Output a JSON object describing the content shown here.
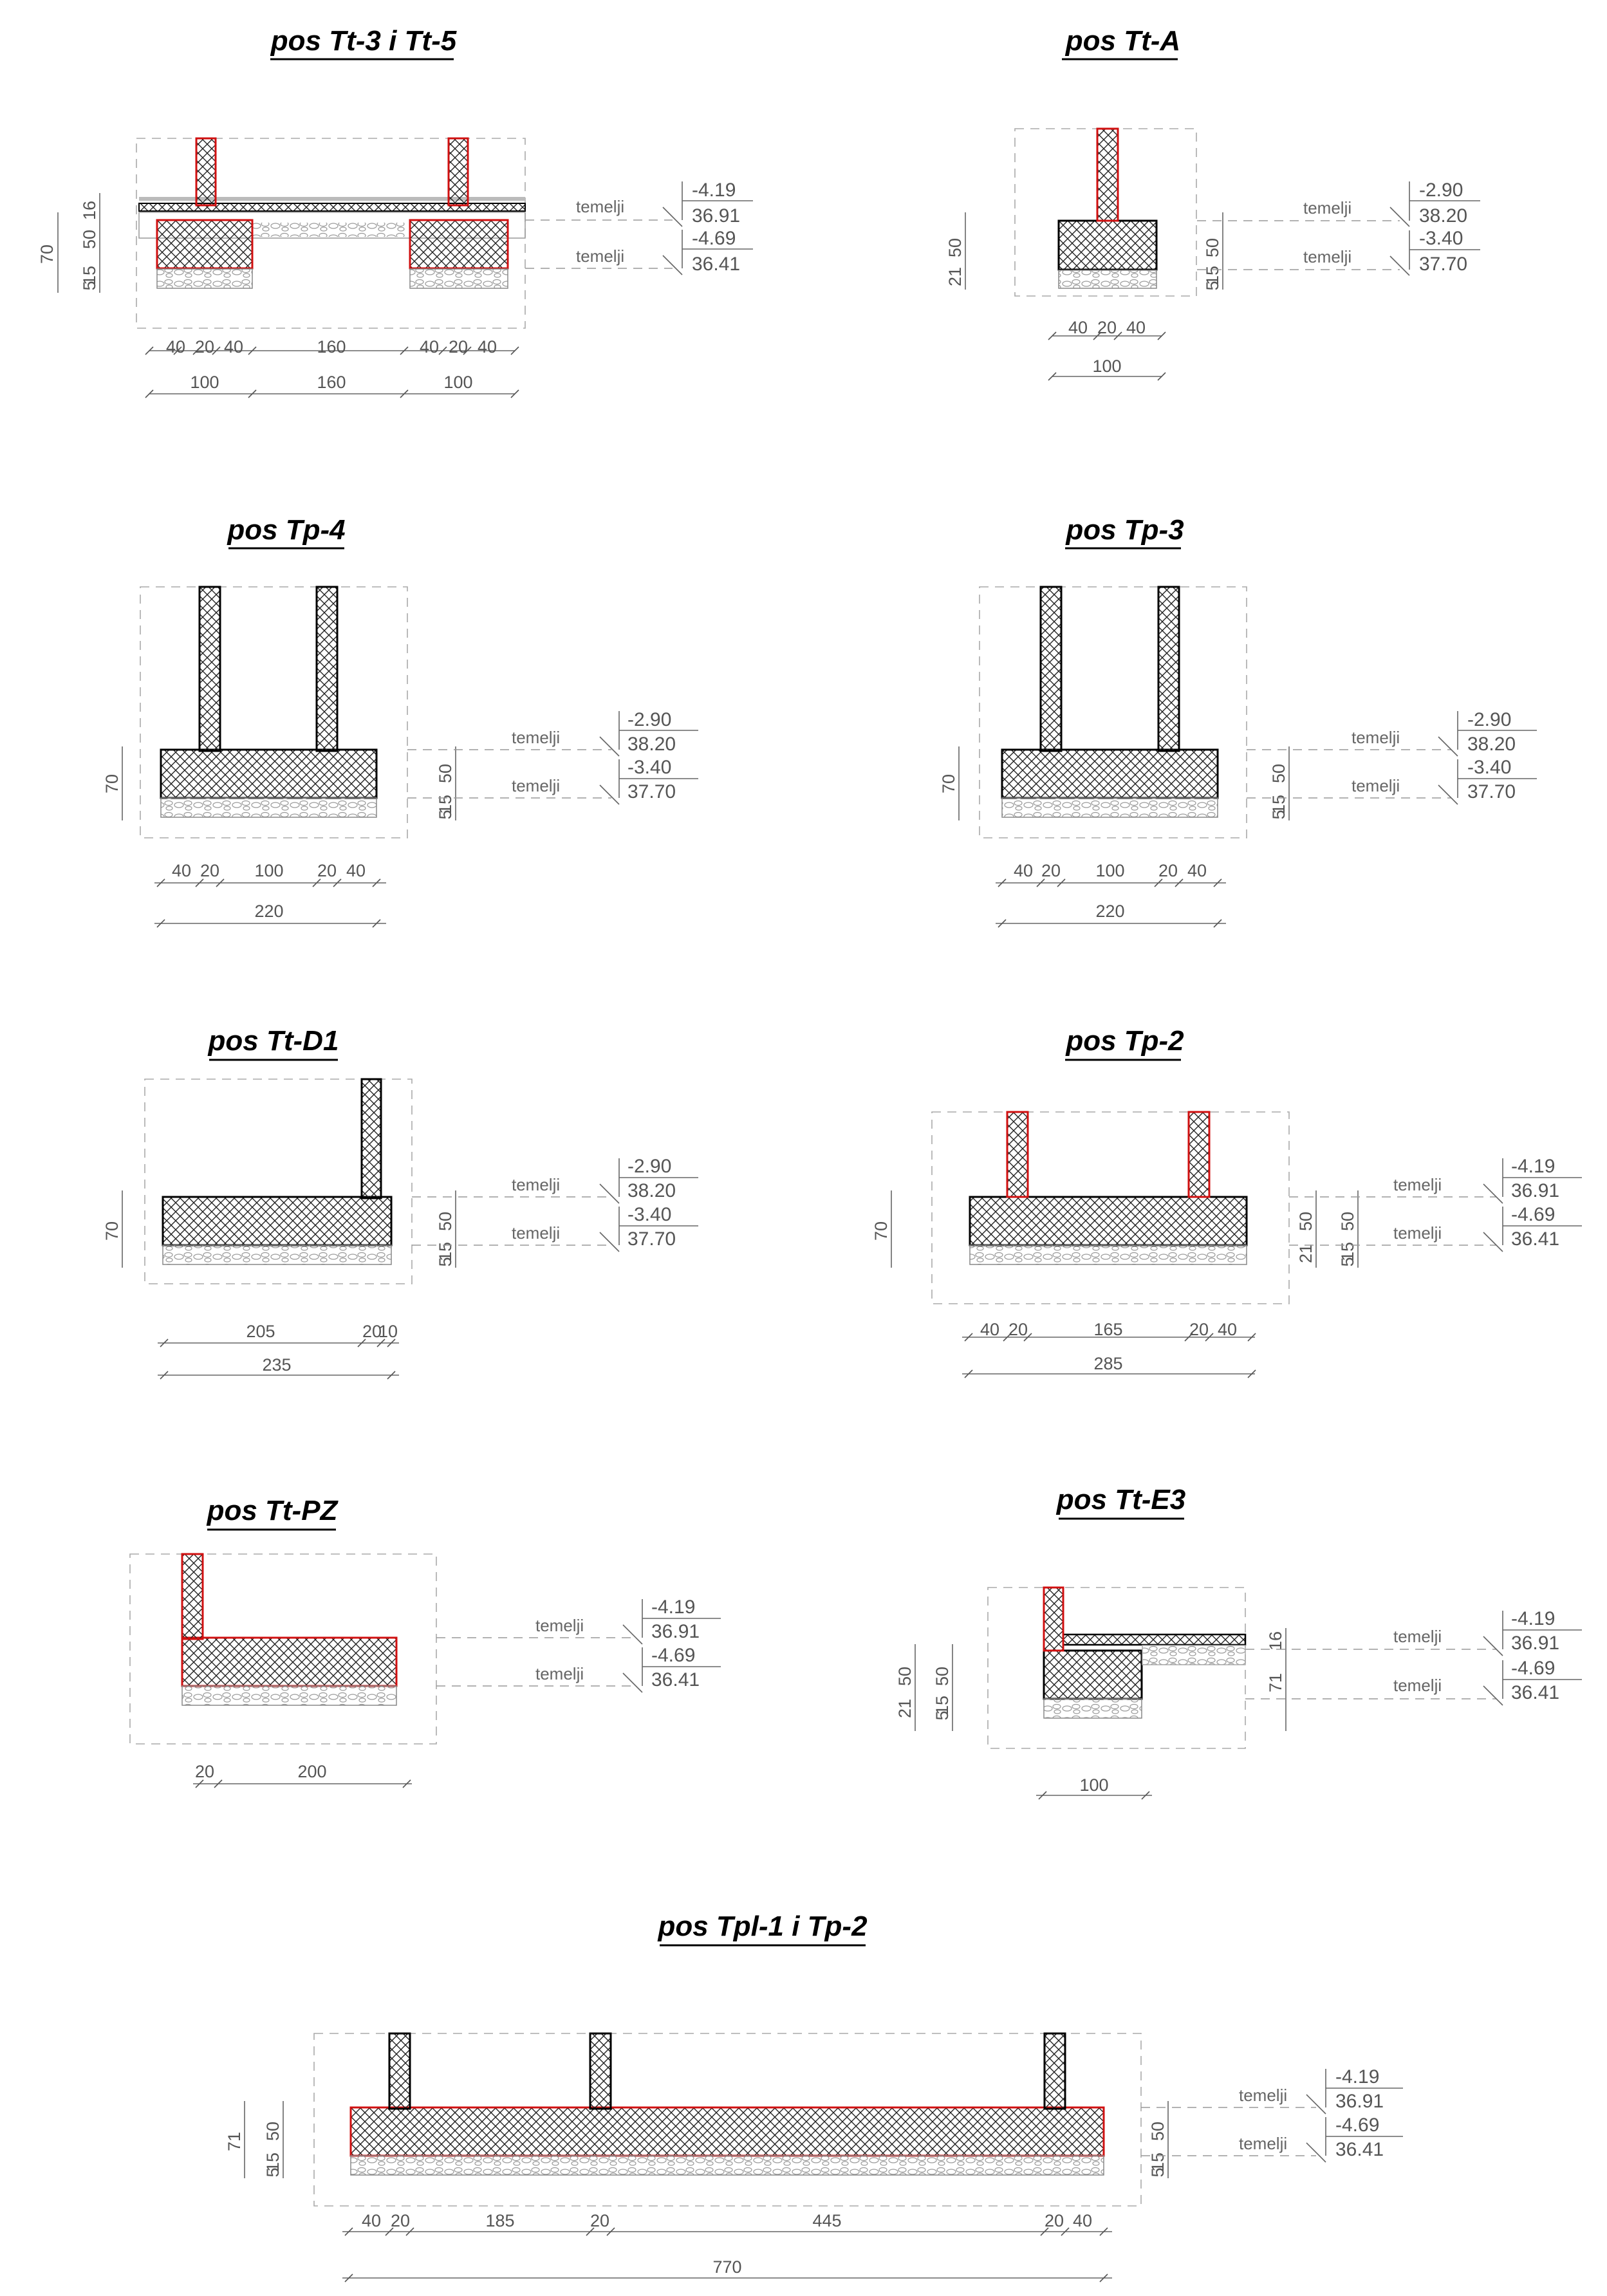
{
  "sections": [
    {
      "id": "s1",
      "title": "pos Tt-3 i Tt-5",
      "dims_row1": [
        "40",
        "20",
        "40",
        "160",
        "40",
        "20",
        "40"
      ],
      "dims_row2": [
        "100",
        "160",
        "100"
      ],
      "vdims": [
        "70",
        "50",
        "16",
        "15",
        "5"
      ],
      "label": "temelji",
      "levels": [
        {
          "rel": "-4.19",
          "abs": "36.91"
        },
        {
          "rel": "-4.69",
          "abs": "36.41"
        }
      ]
    },
    {
      "id": "s2",
      "title": "pos Tt-A",
      "dims_row1": [
        "40",
        "20",
        "40"
      ],
      "dims_row2": [
        "100"
      ],
      "vdims": [
        "50",
        "21",
        "50",
        "15",
        "5"
      ],
      "label": "temelji",
      "levels": [
        {
          "rel": "-2.90",
          "abs": "38.20"
        },
        {
          "rel": "-3.40",
          "abs": "37.70"
        }
      ]
    },
    {
      "id": "s3",
      "title": "pos Tp-4",
      "dims_row1": [
        "40",
        "20",
        "100",
        "20",
        "40"
      ],
      "dims_row2": [
        "220"
      ],
      "vdims": [
        "70",
        "50",
        "15",
        "5"
      ],
      "label": "temelji",
      "levels": [
        {
          "rel": "-2.90",
          "abs": "38.20"
        },
        {
          "rel": "-3.40",
          "abs": "37.70"
        }
      ]
    },
    {
      "id": "s4",
      "title": "pos Tp-3",
      "dims_row1": [
        "40",
        "20",
        "100",
        "20",
        "40"
      ],
      "dims_row2": [
        "220"
      ],
      "vdims": [
        "70",
        "50",
        "15",
        "5"
      ],
      "label": "temelji",
      "levels": [
        {
          "rel": "-2.90",
          "abs": "38.20"
        },
        {
          "rel": "-3.40",
          "abs": "37.70"
        }
      ]
    },
    {
      "id": "s5",
      "title": "pos Tt-D1",
      "dims_row1": [
        "205",
        "20",
        "10"
      ],
      "dims_row2": [
        "235"
      ],
      "vdims": [
        "70",
        "50",
        "15",
        "5"
      ],
      "label": "temelji",
      "levels": [
        {
          "rel": "-2.90",
          "abs": "38.20"
        },
        {
          "rel": "-3.40",
          "abs": "37.70"
        }
      ]
    },
    {
      "id": "s6",
      "title": "pos Tp-2",
      "dims_row1": [
        "40",
        "20",
        "165",
        "20",
        "40"
      ],
      "dims_row2": [
        "285"
      ],
      "vdims": [
        "70",
        "21",
        "50",
        "50",
        "15",
        "5"
      ],
      "label": "temelji",
      "levels": [
        {
          "rel": "-4.19",
          "abs": "36.91"
        },
        {
          "rel": "-4.69",
          "abs": "36.41"
        }
      ]
    },
    {
      "id": "s7",
      "title": "pos Tt-PZ",
      "dims_row1": [
        "20",
        "200"
      ],
      "label": "temelji",
      "levels": [
        {
          "rel": "-4.19",
          "abs": "36.91"
        },
        {
          "rel": "-4.69",
          "abs": "36.41"
        }
      ]
    },
    {
      "id": "s8",
      "title": "pos Tt-E3",
      "dims_row1": [
        "100"
      ],
      "vdims": [
        "50",
        "21",
        "50",
        "15",
        "5",
        "16",
        "71"
      ],
      "label": "temelji",
      "levels": [
        {
          "rel": "-4.19",
          "abs": "36.91"
        },
        {
          "rel": "-4.69",
          "abs": "36.41"
        }
      ]
    },
    {
      "id": "s9",
      "title": "pos Tpl-1 i Tp-2",
      "dims_row1": [
        "40",
        "20",
        "185",
        "20",
        "445",
        "20",
        "40"
      ],
      "dims_row2": [
        "770"
      ],
      "vdims": [
        "71",
        "50",
        "15",
        "5",
        "50",
        "15",
        "5"
      ],
      "label": "temelji",
      "levels": [
        {
          "rel": "-4.19",
          "abs": "36.91"
        },
        {
          "rel": "-4.69",
          "abs": "36.41"
        }
      ]
    }
  ]
}
